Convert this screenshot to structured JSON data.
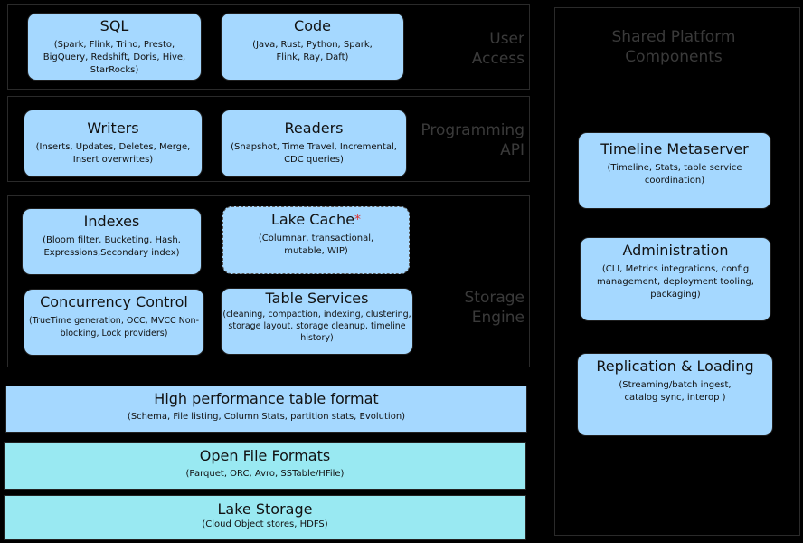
{
  "colors": {
    "component": "#a5d8ff",
    "file_layer": "#99e9f2",
    "background": "#000000",
    "accent": "#e03131"
  },
  "groups": {
    "user_access": "User Access",
    "programming_api": "Programming API",
    "storage_engine": "Storage Engine",
    "shared": "Shared Platform Components"
  },
  "components": {
    "sql": {
      "title": "SQL",
      "desc": "(Spark, Flink, Trino, Presto, BigQuery, Redshift, Doris, Hive, StarRocks)"
    },
    "code": {
      "title": "Code",
      "desc": "(Java, Rust, Python, Spark, Flink, Ray, Daft)"
    },
    "writers": {
      "title": "Writers",
      "desc": "(Inserts, Updates, Deletes, Merge, Insert overwrites)"
    },
    "readers": {
      "title": "Readers",
      "desc": "(Snapshot, Time Travel, Incremental, CDC queries)"
    },
    "indexes": {
      "title": "Indexes",
      "desc": "(Bloom filter, Bucketing, Hash, Expressions,Secondary index)"
    },
    "lake_cache": {
      "title": "Lake Cache",
      "marker": "*",
      "desc": "(Columnar, transactional, mutable, WIP)"
    },
    "concurrency": {
      "title": "Concurrency Control",
      "desc": "(TrueTime generation, OCC, MVCC Non-blocking, Lock providers)"
    },
    "table_services": {
      "title": "Table Services",
      "desc": "(cleaning, compaction, indexing, clustering, storage layout, storage cleanup, timeline history)"
    },
    "timeline": {
      "title": "Timeline Metaserver",
      "desc": "(Timeline, Stats, table service coordination)"
    },
    "admin": {
      "title": "Administration",
      "desc": "(CLI, Metrics integrations, config management, deployment tooling, packaging)"
    },
    "replication": {
      "title": "Replication & Loading",
      "desc": "(Streaming/batch ingest, catalog sync, interop )"
    }
  },
  "layers": {
    "table_format": {
      "title": "High performance table format",
      "desc": "(Schema, File listing, Column Stats, partition stats, Evolution)"
    },
    "file_formats": {
      "title": "Open File Formats",
      "desc": "(Parquet, ORC, Avro, SSTable/HFile)"
    },
    "lake_storage": {
      "title": "Lake Storage",
      "desc": "(Cloud Object stores, HDFS)"
    }
  }
}
